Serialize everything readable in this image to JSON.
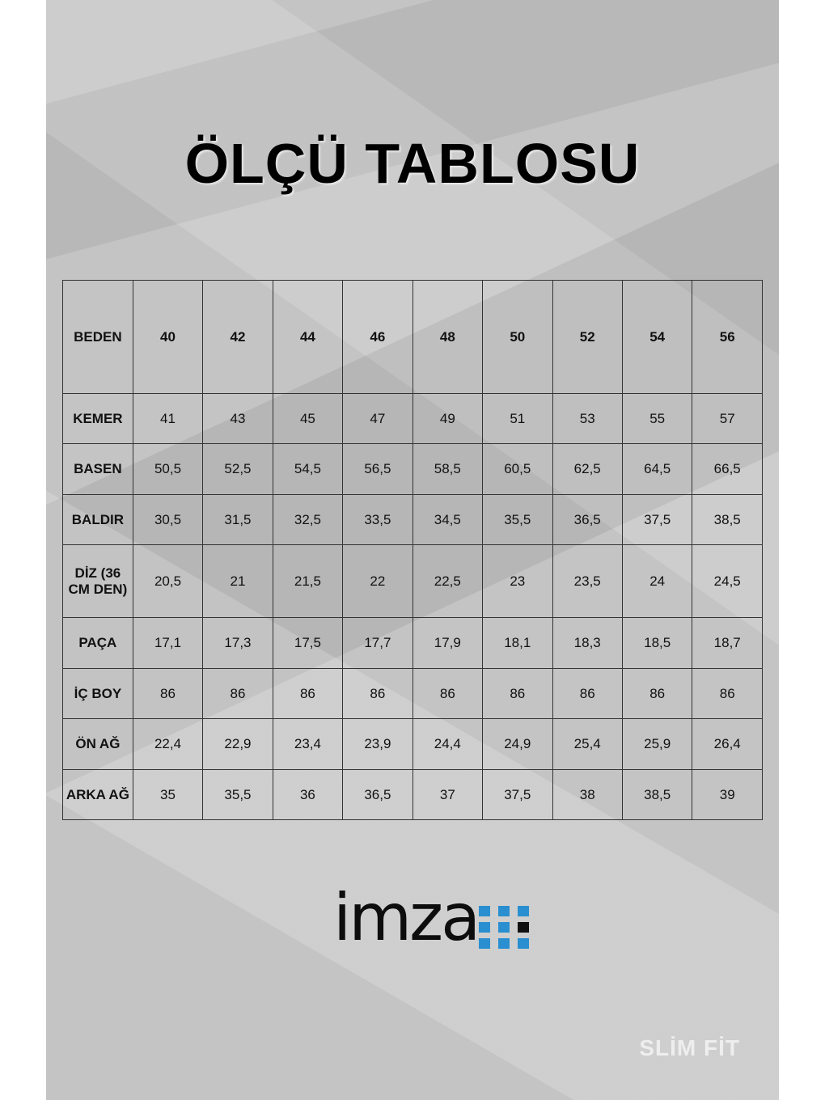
{
  "title": "ÖLÇÜ TABLOSU",
  "table": {
    "header": [
      "BEDEN",
      "40",
      "42",
      "44",
      "46",
      "48",
      "50",
      "52",
      "54",
      "56"
    ],
    "rows": [
      {
        "label": "KEMER",
        "values": [
          "41",
          "43",
          "45",
          "47",
          "49",
          "51",
          "53",
          "55",
          "57"
        ]
      },
      {
        "label": "BASEN",
        "values": [
          "50,5",
          "52,5",
          "54,5",
          "56,5",
          "58,5",
          "60,5",
          "62,5",
          "64,5",
          "66,5"
        ]
      },
      {
        "label": "BALDIR",
        "values": [
          "30,5",
          "31,5",
          "32,5",
          "33,5",
          "34,5",
          "35,5",
          "36,5",
          "37,5",
          "38,5"
        ]
      },
      {
        "label": "DİZ (36 CM DEN)",
        "values": [
          "20,5",
          "21",
          "21,5",
          "22",
          "22,5",
          "23",
          "23,5",
          "24",
          "24,5"
        ]
      },
      {
        "label": "PAÇA",
        "values": [
          "17,1",
          "17,3",
          "17,5",
          "17,7",
          "17,9",
          "18,1",
          "18,3",
          "18,5",
          "18,7"
        ]
      },
      {
        "label": "İÇ BOY",
        "values": [
          "86",
          "86",
          "86",
          "86",
          "86",
          "86",
          "86",
          "86",
          "86"
        ]
      },
      {
        "label": "ÖN AĞ",
        "values": [
          "22,4",
          "22,9",
          "23,4",
          "23,9",
          "24,4",
          "24,9",
          "25,4",
          "25,9",
          "26,4"
        ]
      },
      {
        "label": "ARKA AĞ",
        "values": [
          "35",
          "35,5",
          "36",
          "36,5",
          "37",
          "37,5",
          "38",
          "38,5",
          "39"
        ]
      }
    ]
  },
  "logo": {
    "text": "imza",
    "accent": "#2a8fd0"
  },
  "fit_label": "SLİM FİT"
}
